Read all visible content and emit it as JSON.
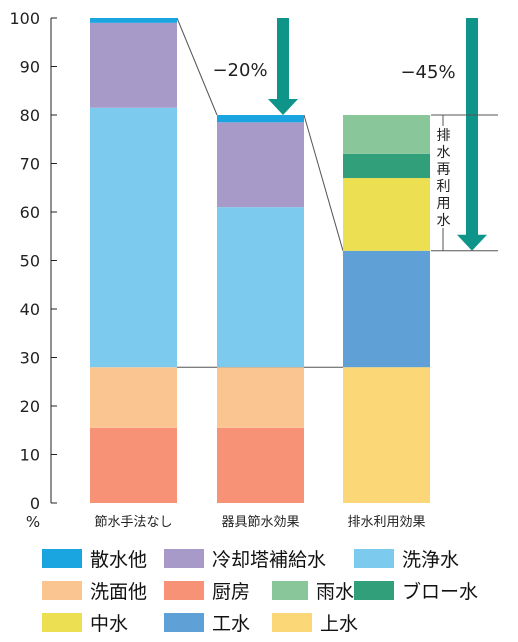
{
  "chart_data": {
    "type": "stacked-bar",
    "title": "",
    "xlabel": "",
    "ylabel": "%",
    "ylim": [
      0,
      100
    ],
    "yticks": [
      0,
      10,
      20,
      30,
      40,
      50,
      60,
      70,
      80,
      90,
      100
    ],
    "grid": false,
    "legend_position": "bottom",
    "categories": [
      "節水手法なし",
      "器具節水効果",
      "排水利用効果"
    ],
    "series": [
      {
        "name": "上水",
        "color": "#fbd777",
        "values": [
          0,
          0,
          28
        ]
      },
      {
        "name": "工水",
        "color": "#5fa1d6",
        "values": [
          0,
          0,
          24
        ]
      },
      {
        "name": "中水",
        "color": "#ece052",
        "values": [
          0,
          0,
          15
        ]
      },
      {
        "name": "ブロー水",
        "color": "#31a07a",
        "values": [
          0,
          0,
          5
        ]
      },
      {
        "name": "雨水",
        "color": "#89c69a",
        "values": [
          0,
          0,
          8
        ]
      },
      {
        "name": "厨房",
        "color": "#f79276",
        "values": [
          15.5,
          15.5,
          0
        ]
      },
      {
        "name": "洗面他",
        "color": "#fbc591",
        "values": [
          12.5,
          12.5,
          0
        ]
      },
      {
        "name": "洗浄水",
        "color": "#7ccbef",
        "values": [
          53.5,
          33,
          0
        ]
      },
      {
        "name": "冷却塔補給水",
        "color": "#a79ac9",
        "values": [
          17.5,
          17.5,
          0
        ]
      },
      {
        "name": "散水他",
        "color": "#1aa5e0",
        "values": [
          1,
          1.5,
          0
        ]
      }
    ],
    "annotations": {
      "reduction_1": "−20%",
      "reduction_2": "−45%",
      "bracket_label": "排水再利用水",
      "bracket_range": [
        52,
        80
      ]
    }
  },
  "legend": [
    [
      {
        "label": "散水他",
        "color": "#1aa5e0"
      },
      {
        "label": "冷却塔補給水",
        "color": "#a79ac9"
      },
      {
        "label": "洗浄水",
        "color": "#7ccbef"
      }
    ],
    [
      {
        "label": "洗面他",
        "color": "#fbc591"
      },
      {
        "label": "厨房",
        "color": "#f79276"
      },
      {
        "label": "雨水",
        "color": "#89c69a"
      },
      {
        "label": "ブロー水",
        "color": "#31a07a"
      }
    ],
    [
      {
        "label": "中水",
        "color": "#ece052"
      },
      {
        "label": "工水",
        "color": "#5fa1d6"
      },
      {
        "label": "上水",
        "color": "#fbd777"
      }
    ]
  ]
}
